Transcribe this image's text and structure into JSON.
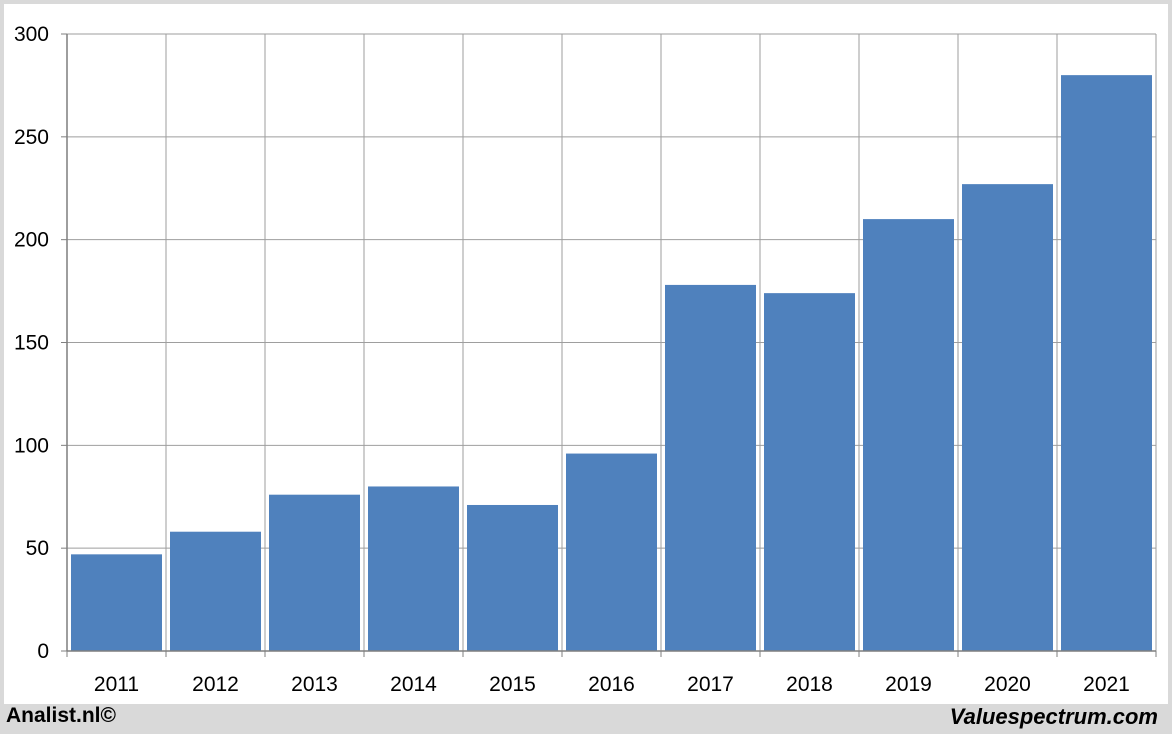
{
  "chart_data": {
    "type": "bar",
    "categories": [
      "2011",
      "2012",
      "2013",
      "2014",
      "2015",
      "2016",
      "2017",
      "2018",
      "2019",
      "2020",
      "2021"
    ],
    "values": [
      47,
      58,
      76,
      80,
      71,
      96,
      178,
      174,
      210,
      227,
      280
    ],
    "title": "",
    "xlabel": "",
    "ylabel": "",
    "ylim": [
      0,
      300
    ],
    "yticks": [
      0,
      50,
      100,
      150,
      200,
      250,
      300
    ],
    "grid": true,
    "bar_color": "#4f81bd",
    "grid_color": "#9e9e9e"
  },
  "footer": {
    "left": "Analist.nl©",
    "right": "Valuespectrum.com"
  }
}
